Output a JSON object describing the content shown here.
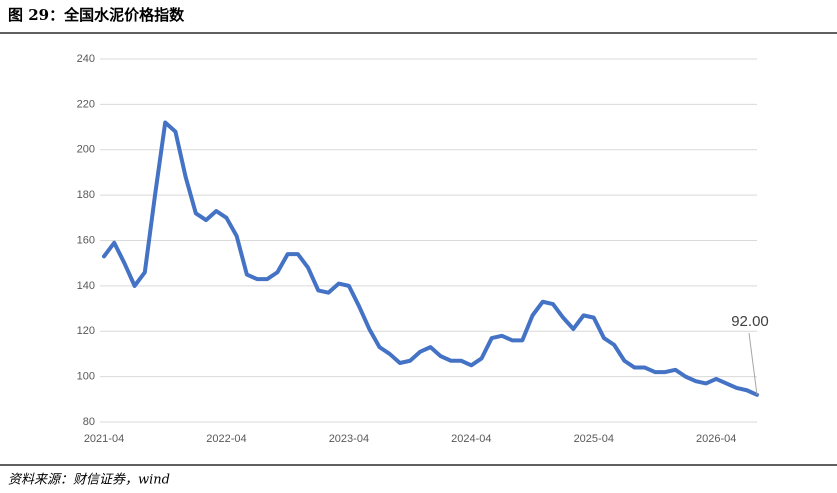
{
  "chart_data": {
    "type": "line",
    "title": "图 29：全国水泥价格指数",
    "source": "资料来源：财信证券，wind",
    "categories": [
      "2021-04",
      null,
      null,
      null,
      null,
      null,
      null,
      null,
      null,
      null,
      null,
      null,
      "2022-04",
      null,
      null,
      null,
      null,
      null,
      null,
      null,
      null,
      null,
      null,
      null,
      "2023-04",
      null,
      null,
      null,
      null,
      null,
      null,
      null,
      null,
      null,
      null,
      null,
      "2024-04",
      null,
      null,
      null,
      null,
      null,
      null,
      null,
      null,
      null,
      null,
      null,
      "2025-04",
      null,
      null,
      null,
      null,
      null,
      null,
      null,
      null,
      null,
      null,
      null,
      "2026-04",
      null,
      null,
      null,
      null
    ],
    "series": [
      {
        "color": "#4472c4",
        "values": [
          153,
          159,
          150,
          140,
          146,
          180,
          212,
          208,
          188,
          172,
          169,
          173,
          170,
          162,
          145,
          143,
          143,
          146,
          154,
          154,
          148,
          138,
          137,
          141,
          140,
          131,
          121,
          113,
          110,
          106,
          107,
          111,
          113,
          109,
          107,
          107,
          105,
          108,
          117,
          118,
          116,
          116,
          127,
          133,
          132,
          126,
          121,
          127,
          126,
          117,
          114,
          107,
          104,
          104,
          102,
          102,
          103,
          100,
          98,
          97,
          99,
          97,
          95,
          94,
          92
        ],
        "value_labels": [
          null,
          null,
          null,
          null,
          null,
          null,
          null,
          null,
          null,
          null,
          null,
          null,
          null,
          null,
          null,
          null,
          null,
          null,
          null,
          null,
          null,
          null,
          null,
          null,
          null,
          null,
          null,
          null,
          null,
          null,
          null,
          null,
          null,
          null,
          null,
          null,
          null,
          null,
          null,
          null,
          null,
          null,
          null,
          null,
          null,
          null,
          null,
          null,
          null,
          null,
          null,
          null,
          null,
          null,
          null,
          null,
          null,
          null,
          null,
          null,
          null,
          null,
          null,
          null,
          "92.00"
        ]
      }
    ],
    "ylim": [
      80,
      240
    ],
    "yticks": [
      80,
      100,
      120,
      140,
      160,
      180,
      200,
      220,
      240
    ],
    "grid": true
  }
}
